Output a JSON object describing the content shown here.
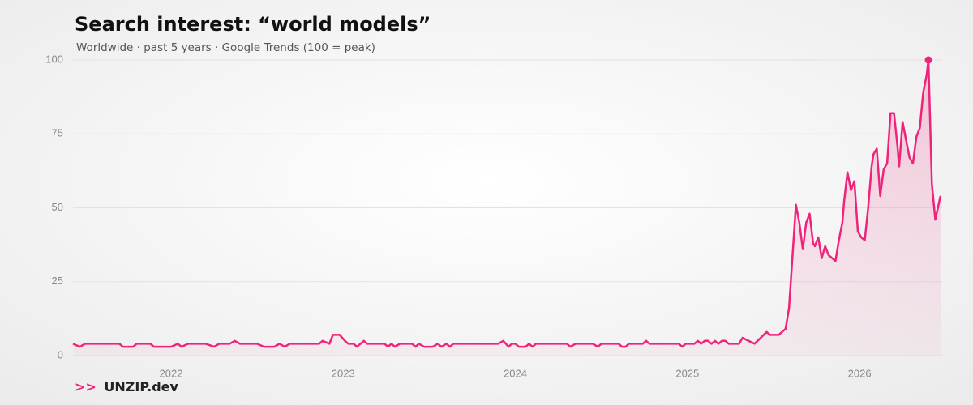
{
  "chart_data": {
    "type": "line",
    "title": "Search interest: “world models”",
    "subtitle": "Worldwide · past 5 years · Google Trends (100 = peak)",
    "brand": {
      "prefix": ">>",
      "name": "UNZIP.dev"
    },
    "color": "#f0237a",
    "grid": true,
    "peak_marker": true,
    "xlim": [
      2021.43,
      2026.48
    ],
    "xticks": [
      2022,
      2023,
      2024,
      2025,
      2026
    ],
    "ylim": [
      0,
      100
    ],
    "yticks": [
      0,
      25,
      50,
      75,
      100
    ],
    "x": [
      2021.43,
      2021.47,
      2021.5,
      2021.6,
      2021.7,
      2021.72,
      2021.78,
      2021.8,
      2021.88,
      2021.9,
      2022.0,
      2022.04,
      2022.06,
      2022.1,
      2022.2,
      2022.25,
      2022.28,
      2022.34,
      2022.37,
      2022.4,
      2022.5,
      2022.54,
      2022.6,
      2022.63,
      2022.66,
      2022.69,
      2022.8,
      2022.86,
      2022.88,
      2022.92,
      2022.94,
      2022.98,
      2023.01,
      2023.03,
      2023.06,
      2023.08,
      2023.12,
      2023.14,
      2023.2,
      2023.24,
      2023.26,
      2023.28,
      2023.3,
      2023.33,
      2023.4,
      2023.42,
      2023.44,
      2023.47,
      2023.52,
      2023.55,
      2023.57,
      2023.6,
      2023.62,
      2023.64,
      2023.7,
      2023.8,
      2023.9,
      2023.93,
      2023.96,
      2023.98,
      2024.0,
      2024.02,
      2024.06,
      2024.08,
      2024.1,
      2024.12,
      2024.2,
      2024.3,
      2024.32,
      2024.35,
      2024.45,
      2024.48,
      2024.5,
      2024.6,
      2024.62,
      2024.64,
      2024.66,
      2024.74,
      2024.76,
      2024.78,
      2024.85,
      2024.95,
      2024.97,
      2024.99,
      2025.04,
      2025.06,
      2025.08,
      2025.1,
      2025.12,
      2025.14,
      2025.16,
      2025.18,
      2025.2,
      2025.22,
      2025.24,
      2025.3,
      2025.32,
      2025.39,
      2025.46,
      2025.48,
      2025.53,
      2025.57,
      2025.59,
      2025.63,
      2025.65,
      2025.67,
      2025.69,
      2025.71,
      2025.73,
      2025.74,
      2025.76,
      2025.78,
      2025.8,
      2025.82,
      2025.86,
      2025.88,
      2025.9,
      2025.91,
      2025.93,
      2025.95,
      2025.97,
      2025.99,
      2026.01,
      2026.03,
      2026.05,
      2026.07,
      2026.08,
      2026.1,
      2026.12,
      2026.14,
      2026.16,
      2026.18,
      2026.2,
      2026.22,
      2026.23,
      2026.25,
      2026.27,
      2026.29,
      2026.31,
      2026.33,
      2026.35,
      2026.37,
      2026.39,
      2026.4,
      2026.42,
      2026.44,
      2026.47
    ],
    "values": [
      4,
      3,
      4,
      4,
      4,
      3,
      3,
      4,
      4,
      3,
      3,
      4,
      3,
      4,
      4,
      3,
      4,
      4,
      5,
      4,
      4,
      3,
      3,
      4,
      3,
      4,
      4,
      4,
      5,
      4,
      7,
      7,
      5,
      4,
      4,
      3,
      5,
      4,
      4,
      4,
      3,
      4,
      3,
      4,
      4,
      3,
      4,
      3,
      3,
      4,
      3,
      4,
      3,
      4,
      4,
      4,
      4,
      5,
      3,
      4,
      4,
      3,
      3,
      4,
      3,
      4,
      4,
      4,
      3,
      4,
      4,
      3,
      4,
      4,
      3,
      3,
      4,
      4,
      5,
      4,
      4,
      4,
      3,
      4,
      4,
      5,
      4,
      5,
      5,
      4,
      5,
      4,
      5,
      5,
      4,
      4,
      6,
      4,
      8,
      7,
      7,
      9,
      16,
      51,
      45,
      36,
      45,
      48,
      38,
      37,
      40,
      33,
      37,
      34,
      32,
      39,
      45,
      52,
      62,
      56,
      59,
      42,
      40,
      39,
      50,
      64,
      68,
      70,
      54,
      63,
      65,
      82,
      82,
      71,
      64,
      79,
      73,
      67,
      65,
      74,
      77,
      89,
      95,
      100,
      58,
      46,
      54
    ]
  }
}
